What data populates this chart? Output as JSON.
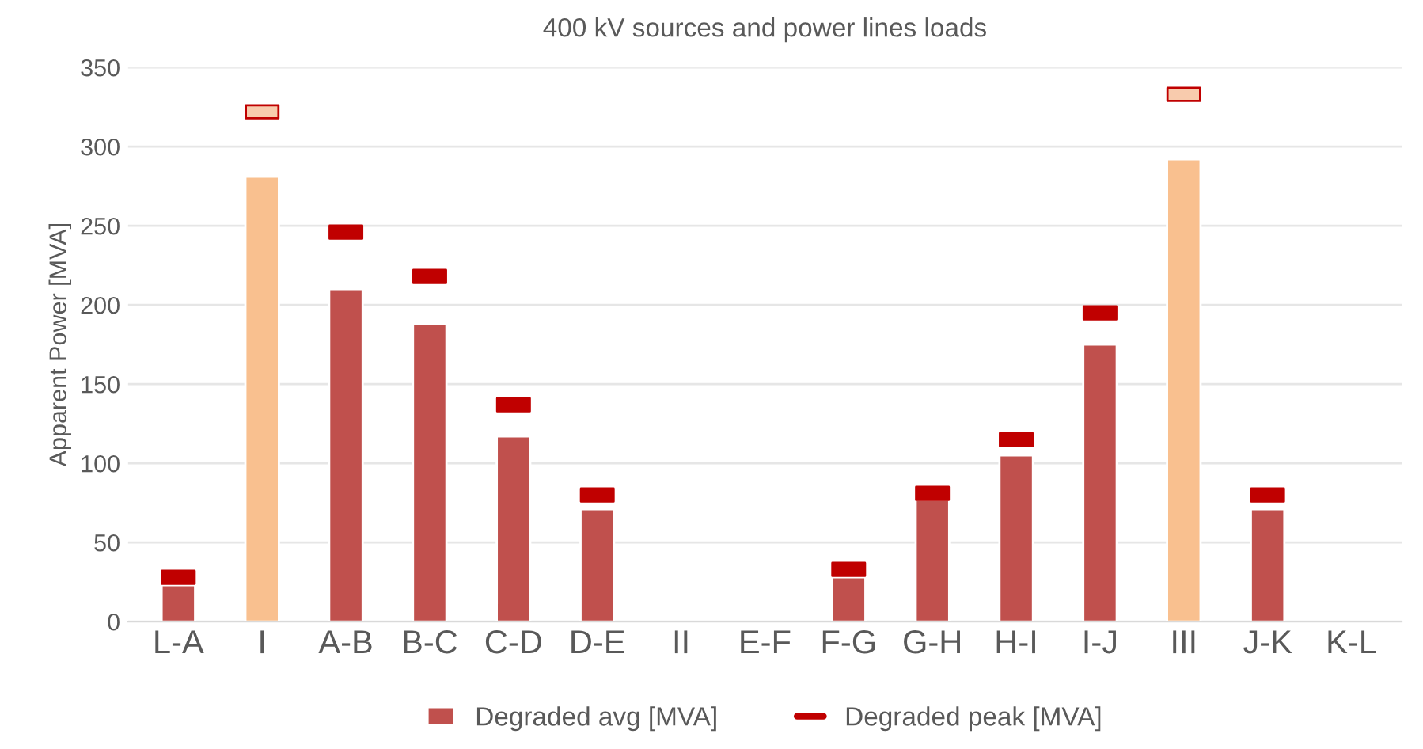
{
  "chart_data": {
    "type": "bar",
    "title": "400 kV sources and power lines loads",
    "ylabel": "Apparent Power [MVA]",
    "categories": [
      "L-A",
      "I",
      "A-B",
      "B-C",
      "C-D",
      "D-E",
      "II",
      "E-F",
      "F-G",
      "G-H",
      "H-I",
      "I-J",
      "III",
      "J-K",
      "K-L"
    ],
    "series": [
      {
        "name": "Degraded avg [MVA]",
        "type": "bar",
        "color": "#c0504d",
        "colors": [
          "#c0504d",
          "#f9c08f",
          "#c0504d",
          "#c0504d",
          "#c0504d",
          "#c0504d",
          "#c0504d",
          "#c0504d",
          "#c0504d",
          "#c0504d",
          "#c0504d",
          "#c0504d",
          "#f9c08f",
          "#c0504d",
          "#c0504d"
        ],
        "values": [
          23,
          281,
          210,
          188,
          117,
          71,
          null,
          null,
          28,
          77,
          105,
          175,
          292,
          71,
          null
        ]
      },
      {
        "name": "Degraded peak [MVA]",
        "type": "scatter",
        "color": "#c00000",
        "colors": [
          "#c00000",
          "#f8cbad",
          "#c00000",
          "#c00000",
          "#c00000",
          "#c00000",
          "#c00000",
          "#c00000",
          "#c00000",
          "#c00000",
          "#c00000",
          "#c00000",
          "#f8cbad",
          "#c00000",
          "#c00000"
        ],
        "values": [
          28,
          322,
          246,
          218,
          137,
          80,
          null,
          null,
          33,
          81,
          115,
          195,
          333,
          80,
          null
        ]
      }
    ],
    "ylim": [
      0,
      350
    ],
    "yticks": [
      0,
      50,
      100,
      150,
      200,
      250,
      300,
      350
    ],
    "grid": "y",
    "legend": "bottom"
  }
}
